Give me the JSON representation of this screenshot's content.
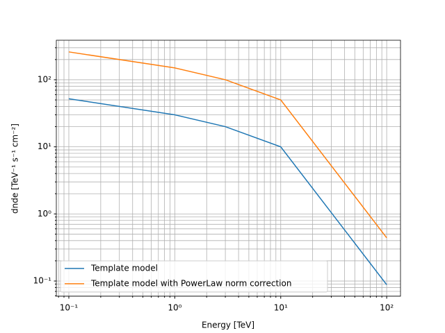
{
  "chart_data": {
    "type": "line",
    "xlabel": "Energy [TeV]",
    "ylabel": "dnde [TeV⁻¹ s⁻¹ cm⁻²]",
    "x": [
      0.1,
      1,
      3,
      10,
      100
    ],
    "series": [
      {
        "name": "Template model",
        "color": "#1f77b4",
        "values": [
          52,
          30,
          20,
          10,
          0.088
        ]
      },
      {
        "name": "Template model with PowerLaw norm correction",
        "color": "#ff7f0e",
        "values": [
          260,
          150,
          100,
          50,
          0.44
        ]
      }
    ],
    "xscale": "log",
    "yscale": "log",
    "xlim": [
      0.0762,
      135
    ],
    "ylim": [
      0.0593,
      388
    ],
    "xticks": [
      {
        "value": 0.1,
        "label": "10⁻¹"
      },
      {
        "value": 1,
        "label": "10⁰"
      },
      {
        "value": 10,
        "label": "10¹"
      },
      {
        "value": 100,
        "label": "10²"
      }
    ],
    "yticks": [
      {
        "value": 0.1,
        "label": "10⁻¹"
      },
      {
        "value": 1,
        "label": "10⁰"
      },
      {
        "value": 10,
        "label": "10¹"
      },
      {
        "value": 100,
        "label": "10²"
      }
    ],
    "xminor": [
      0.08,
      0.09,
      0.2,
      0.3,
      0.4,
      0.5,
      0.6,
      0.7,
      0.8,
      0.9,
      2,
      3,
      4,
      5,
      6,
      7,
      8,
      9,
      20,
      30,
      40,
      50,
      60,
      70,
      80,
      90
    ],
    "yminor": [
      0.06,
      0.07,
      0.08,
      0.09,
      0.2,
      0.3,
      0.4,
      0.5,
      0.6,
      0.7,
      0.8,
      0.9,
      2,
      3,
      4,
      5,
      6,
      7,
      8,
      9,
      20,
      30,
      40,
      50,
      60,
      70,
      80,
      90,
      200,
      300
    ],
    "grid": true,
    "legend": "lower left"
  }
}
